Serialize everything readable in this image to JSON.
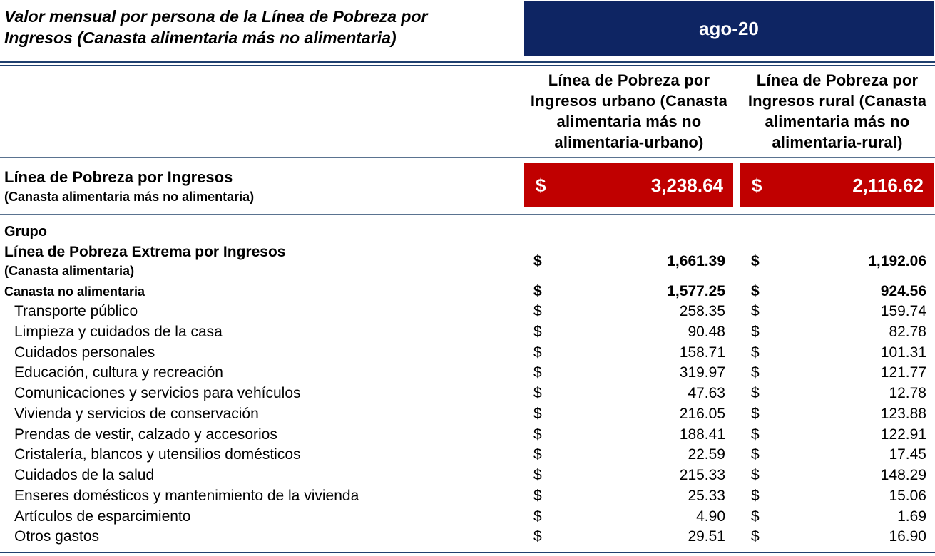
{
  "title": {
    "line1": "Valor mensual por persona de la Línea de Pobreza por",
    "line2": "Ingresos (Canasta alimentaria más no alimentaria)"
  },
  "period": "ago-20",
  "columns": {
    "urban": [
      "Línea de Pobreza por",
      "Ingresos urbano (Canasta",
      "alimentaria más no",
      "alimentaria-urbano)"
    ],
    "rural": [
      "Línea de Pobreza por",
      "Ingresos rural (Canasta",
      "alimentaria más no",
      "alimentaria-rural)"
    ]
  },
  "poverty_line": {
    "label": "Línea de Pobreza por Ingresos",
    "sublabel": "(Canasta alimentaria más no alimentaria)",
    "currency": "$",
    "urban": "3,238.64",
    "rural": "2,116.62"
  },
  "group_header": "Grupo",
  "extreme": {
    "label": "Línea de Pobreza Extrema por Ingresos",
    "sublabel": "(Canasta alimentaria)",
    "currency": "$",
    "urban": "1,661.39",
    "rural": "1,192.06"
  },
  "non_food": {
    "label": "Canasta no alimentaria",
    "currency": "$",
    "urban": "1,577.25",
    "rural": "924.56"
  },
  "items": [
    {
      "label": "Transporte público",
      "currency": "$",
      "urban": "258.35",
      "rural": "159.74"
    },
    {
      "label": "Limpieza y cuidados de la casa",
      "currency": "$",
      "urban": "90.48",
      "rural": "82.78"
    },
    {
      "label": "Cuidados personales",
      "currency": "$",
      "urban": "158.71",
      "rural": "101.31"
    },
    {
      "label": "Educación, cultura y recreación",
      "currency": "$",
      "urban": "319.97",
      "rural": "121.77"
    },
    {
      "label": "Comunicaciones y servicios para vehículos",
      "currency": "$",
      "urban": "47.63",
      "rural": "12.78"
    },
    {
      "label": "Vivienda y servicios de conservación",
      "currency": "$",
      "urban": "216.05",
      "rural": "123.88"
    },
    {
      "label": "Prendas de vestir, calzado y accesorios",
      "currency": "$",
      "urban": "188.41",
      "rural": "122.91"
    },
    {
      "label": "Cristalería, blancos y utensilios domésticos",
      "currency": "$",
      "urban": "22.59",
      "rural": "17.45"
    },
    {
      "label": "Cuidados de la salud",
      "currency": "$",
      "urban": "215.33",
      "rural": "148.29"
    },
    {
      "label": "Enseres domésticos y mantenimiento de la vivienda",
      "currency": "$",
      "urban": "25.33",
      "rural": "15.06"
    },
    {
      "label": "Artículos de esparcimiento",
      "currency": "$",
      "urban": "4.90",
      "rural": "1.69"
    },
    {
      "label": "Otros gastos",
      "currency": "$",
      "urban": "29.51",
      "rural": "16.90"
    }
  ],
  "colors": {
    "header_bg": "#0e2563",
    "highlight_bg": "#c00000",
    "rule": "#1f3f6e"
  }
}
